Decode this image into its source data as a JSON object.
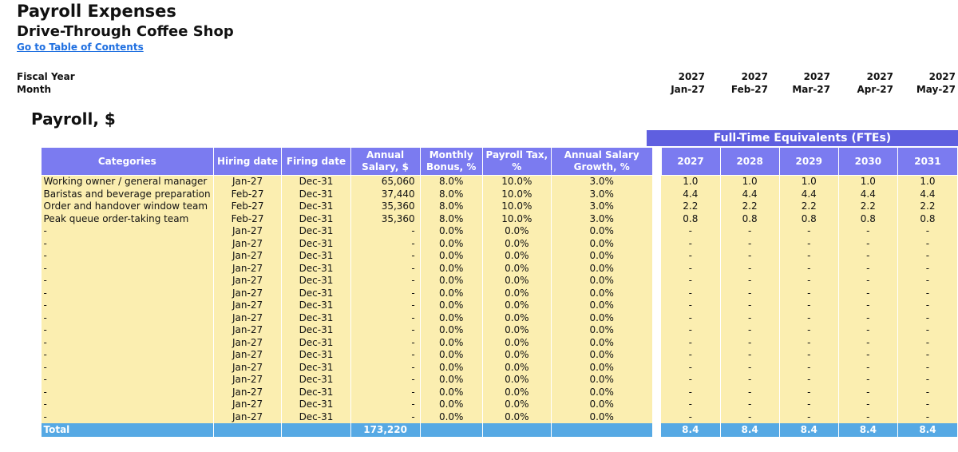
{
  "header": {
    "title": "Payroll Expenses",
    "subtitle": "Drive-Through Coffee Shop",
    "toc_link": "Go to Table of Contents",
    "fiscal_year_label": "Fiscal Year",
    "month_label": "Month",
    "periods": [
      {
        "year": "2027",
        "month": "Jan-27"
      },
      {
        "year": "2027",
        "month": "Feb-27"
      },
      {
        "year": "2027",
        "month": "Mar-27"
      },
      {
        "year": "2027",
        "month": "Apr-27"
      },
      {
        "year": "2027",
        "month": "May-27"
      }
    ]
  },
  "section_title": "Payroll, $",
  "fte_banner": "Full-Time Equivalents (FTEs)",
  "columns": {
    "categories": "Categories",
    "hiring_date": "Hiring date",
    "firing_date": "Firing date",
    "annual_salary": "Annual Salary, $",
    "monthly_bonus": "Monthly Bonus, %",
    "payroll_tax": "Payroll Tax, %",
    "salary_growth": "Annual Salary Growth, %",
    "fte_years": [
      "2027",
      "2028",
      "2029",
      "2030",
      "2031"
    ]
  },
  "rows": [
    {
      "category": "Working owner / general manager",
      "hire": "Jan-27",
      "fire": "Dec-31",
      "salary": "65,060",
      "bonus": "8.0%",
      "tax": "10.0%",
      "growth": "3.0%",
      "fte": [
        "1.0",
        "1.0",
        "1.0",
        "1.0",
        "1.0"
      ]
    },
    {
      "category": "Baristas and beverage preparation",
      "hire": "Feb-27",
      "fire": "Dec-31",
      "salary": "37,440",
      "bonus": "8.0%",
      "tax": "10.0%",
      "growth": "3.0%",
      "fte": [
        "4.4",
        "4.4",
        "4.4",
        "4.4",
        "4.4"
      ]
    },
    {
      "category": "Order and handover window team",
      "hire": "Feb-27",
      "fire": "Dec-31",
      "salary": "35,360",
      "bonus": "8.0%",
      "tax": "10.0%",
      "growth": "3.0%",
      "fte": [
        "2.2",
        "2.2",
        "2.2",
        "2.2",
        "2.2"
      ]
    },
    {
      "category": "Peak queue order-taking team",
      "hire": "Feb-27",
      "fire": "Dec-31",
      "salary": "35,360",
      "bonus": "8.0%",
      "tax": "10.0%",
      "growth": "3.0%",
      "fte": [
        "0.8",
        "0.8",
        "0.8",
        "0.8",
        "0.8"
      ]
    },
    {
      "category": "-",
      "hire": "Jan-27",
      "fire": "Dec-31",
      "salary": "-",
      "bonus": "0.0%",
      "tax": "0.0%",
      "growth": "0.0%",
      "fte": [
        "-",
        "-",
        "-",
        "-",
        "-"
      ]
    },
    {
      "category": "-",
      "hire": "Jan-27",
      "fire": "Dec-31",
      "salary": "-",
      "bonus": "0.0%",
      "tax": "0.0%",
      "growth": "0.0%",
      "fte": [
        "-",
        "-",
        "-",
        "-",
        "-"
      ]
    },
    {
      "category": "-",
      "hire": "Jan-27",
      "fire": "Dec-31",
      "salary": "-",
      "bonus": "0.0%",
      "tax": "0.0%",
      "growth": "0.0%",
      "fte": [
        "-",
        "-",
        "-",
        "-",
        "-"
      ]
    },
    {
      "category": "-",
      "hire": "Jan-27",
      "fire": "Dec-31",
      "salary": "-",
      "bonus": "0.0%",
      "tax": "0.0%",
      "growth": "0.0%",
      "fte": [
        "-",
        "-",
        "-",
        "-",
        "-"
      ]
    },
    {
      "category": "-",
      "hire": "Jan-27",
      "fire": "Dec-31",
      "salary": "-",
      "bonus": "0.0%",
      "tax": "0.0%",
      "growth": "0.0%",
      "fte": [
        "-",
        "-",
        "-",
        "-",
        "-"
      ]
    },
    {
      "category": "-",
      "hire": "Jan-27",
      "fire": "Dec-31",
      "salary": "-",
      "bonus": "0.0%",
      "tax": "0.0%",
      "growth": "0.0%",
      "fte": [
        "-",
        "-",
        "-",
        "-",
        "-"
      ]
    },
    {
      "category": "-",
      "hire": "Jan-27",
      "fire": "Dec-31",
      "salary": "-",
      "bonus": "0.0%",
      "tax": "0.0%",
      "growth": "0.0%",
      "fte": [
        "-",
        "-",
        "-",
        "-",
        "-"
      ]
    },
    {
      "category": "-",
      "hire": "Jan-27",
      "fire": "Dec-31",
      "salary": "-",
      "bonus": "0.0%",
      "tax": "0.0%",
      "growth": "0.0%",
      "fte": [
        "-",
        "-",
        "-",
        "-",
        "-"
      ]
    },
    {
      "category": "-",
      "hire": "Jan-27",
      "fire": "Dec-31",
      "salary": "-",
      "bonus": "0.0%",
      "tax": "0.0%",
      "growth": "0.0%",
      "fte": [
        "-",
        "-",
        "-",
        "-",
        "-"
      ]
    },
    {
      "category": "-",
      "hire": "Jan-27",
      "fire": "Dec-31",
      "salary": "-",
      "bonus": "0.0%",
      "tax": "0.0%",
      "growth": "0.0%",
      "fte": [
        "-",
        "-",
        "-",
        "-",
        "-"
      ]
    },
    {
      "category": "-",
      "hire": "Jan-27",
      "fire": "Dec-31",
      "salary": "-",
      "bonus": "0.0%",
      "tax": "0.0%",
      "growth": "0.0%",
      "fte": [
        "-",
        "-",
        "-",
        "-",
        "-"
      ]
    },
    {
      "category": "-",
      "hire": "Jan-27",
      "fire": "Dec-31",
      "salary": "-",
      "bonus": "0.0%",
      "tax": "0.0%",
      "growth": "0.0%",
      "fte": [
        "-",
        "-",
        "-",
        "-",
        "-"
      ]
    },
    {
      "category": "-",
      "hire": "Jan-27",
      "fire": "Dec-31",
      "salary": "-",
      "bonus": "0.0%",
      "tax": "0.0%",
      "growth": "0.0%",
      "fte": [
        "-",
        "-",
        "-",
        "-",
        "-"
      ]
    },
    {
      "category": "-",
      "hire": "Jan-27",
      "fire": "Dec-31",
      "salary": "-",
      "bonus": "0.0%",
      "tax": "0.0%",
      "growth": "0.0%",
      "fte": [
        "-",
        "-",
        "-",
        "-",
        "-"
      ]
    },
    {
      "category": "-",
      "hire": "Jan-27",
      "fire": "Dec-31",
      "salary": "-",
      "bonus": "0.0%",
      "tax": "0.0%",
      "growth": "0.0%",
      "fte": [
        "-",
        "-",
        "-",
        "-",
        "-"
      ]
    },
    {
      "category": "-",
      "hire": "Jan-27",
      "fire": "Dec-31",
      "salary": "-",
      "bonus": "0.0%",
      "tax": "0.0%",
      "growth": "0.0%",
      "fte": [
        "-",
        "-",
        "-",
        "-",
        "-"
      ]
    }
  ],
  "total": {
    "label": "Total",
    "salary": "173,220",
    "fte": [
      "8.4",
      "8.4",
      "8.4",
      "8.4",
      "8.4"
    ]
  },
  "colors": {
    "header_blue": "#7b7bf0",
    "banner_blue": "#5f5fe0",
    "input_yellow": "#fbeeb0",
    "total_blue": "#56a9e4",
    "link_blue": "#1f6fe0"
  }
}
